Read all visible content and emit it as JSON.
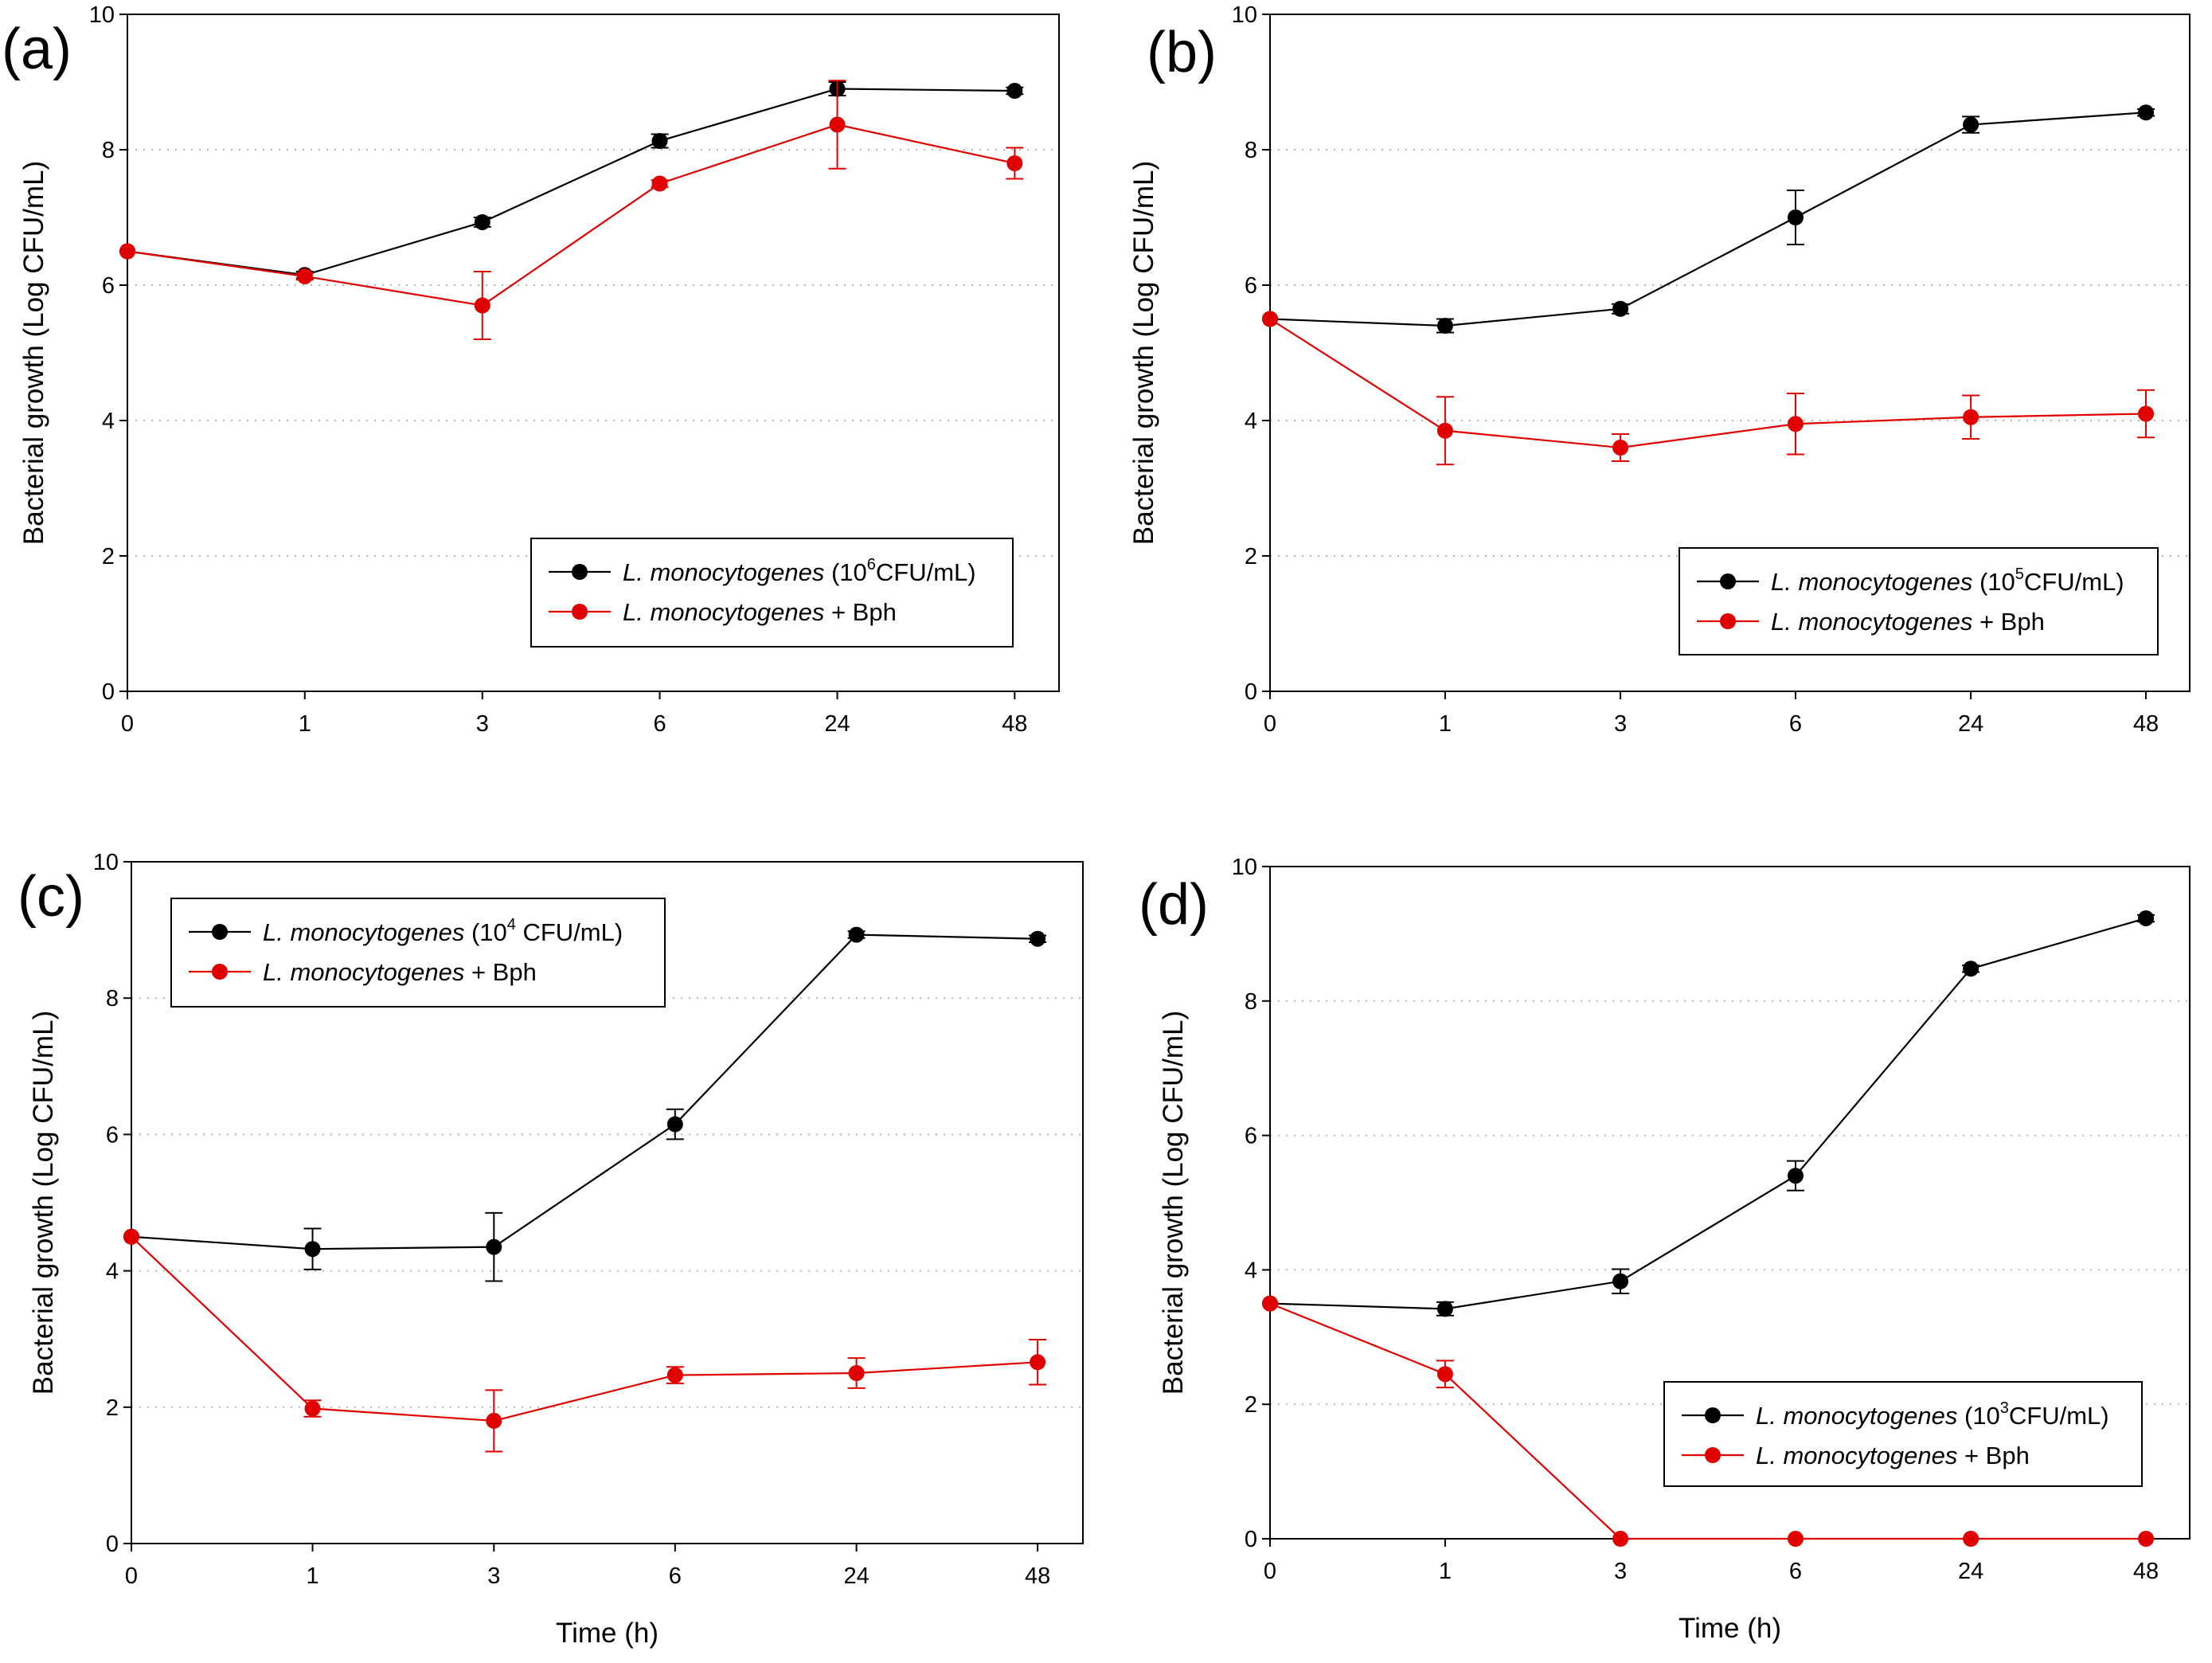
{
  "colors": {
    "series1": "#000000",
    "series2": "#e00000",
    "grid": "#b4b4b4",
    "frame": "#000000"
  },
  "chart_data": [
    {
      "panel_label": "(a)",
      "type": "line",
      "ylabel": "Bacterial growth (Log CFU/mL)",
      "xlabel": "",
      "categories": [
        "0",
        "1",
        "3",
        "6",
        "24",
        "48"
      ],
      "yticks": [
        "0",
        "2",
        "4",
        "6",
        "8",
        "10"
      ],
      "ylim": [
        0,
        10
      ],
      "grid": "horizontal dotted",
      "legend_position": "bottom-right",
      "series": [
        {
          "legend_italic": "L. monocytogenes",
          "legend_pre": " (10",
          "legend_sup": "6",
          "legend_post": "CFU/mL)",
          "values": [
            6.5,
            6.15,
            6.93,
            8.13,
            8.9,
            8.87
          ],
          "errors": [
            0,
            0.05,
            0.07,
            0.1,
            0.1,
            0.05
          ]
        },
        {
          "legend_italic": "L. monocytogenes",
          "legend_pre": " + Bph",
          "legend_sup": "",
          "legend_post": "",
          "values": [
            6.5,
            6.13,
            5.7,
            7.5,
            8.37,
            7.8
          ],
          "errors": [
            0,
            0.05,
            0.5,
            0.05,
            0.65,
            0.23
          ]
        }
      ]
    },
    {
      "panel_label": "(b)",
      "type": "line",
      "ylabel": "Bacterial growth (Log CFU/mL)",
      "xlabel": "",
      "categories": [
        "0",
        "1",
        "3",
        "6",
        "24",
        "48"
      ],
      "yticks": [
        "0",
        "2",
        "4",
        "6",
        "8",
        "10"
      ],
      "ylim": [
        0,
        10
      ],
      "grid": "horizontal dotted",
      "legend_position": "bottom-right",
      "series": [
        {
          "legend_italic": "L. monocytogenes",
          "legend_pre": " (10",
          "legend_sup": "5",
          "legend_post": "CFU/mL)",
          "values": [
            5.5,
            5.4,
            5.65,
            7.0,
            8.37,
            8.55
          ],
          "errors": [
            0,
            0.1,
            0.07,
            0.4,
            0.12,
            0.05
          ]
        },
        {
          "legend_italic": "L. monocytogenes",
          "legend_pre": " + Bph",
          "legend_sup": "",
          "legend_post": "",
          "values": [
            5.5,
            3.85,
            3.6,
            3.95,
            4.05,
            4.1
          ],
          "errors": [
            0,
            0.5,
            0.2,
            0.45,
            0.32,
            0.35
          ]
        }
      ]
    },
    {
      "panel_label": "(c)",
      "type": "line",
      "ylabel": "Bacterial growth (Log CFU/mL)",
      "xlabel": "Time (h)",
      "categories": [
        "0",
        "1",
        "3",
        "6",
        "24",
        "48"
      ],
      "yticks": [
        "0",
        "2",
        "4",
        "6",
        "8",
        "10"
      ],
      "ylim": [
        0,
        10
      ],
      "grid": "horizontal dotted",
      "legend_position": "top-left",
      "series": [
        {
          "legend_italic": "L. monocytogenes",
          "legend_pre": " (10",
          "legend_sup": "4",
          "legend_post": " CFU/mL)",
          "values": [
            4.5,
            4.32,
            4.35,
            6.15,
            8.93,
            8.87
          ],
          "errors": [
            0,
            0.3,
            0.5,
            0.22,
            0.05,
            0.05
          ]
        },
        {
          "legend_italic": "L. monocytogenes",
          "legend_pre": " + Bph",
          "legend_sup": "",
          "legend_post": "",
          "values": [
            4.5,
            1.98,
            1.8,
            2.47,
            2.5,
            2.66
          ],
          "errors": [
            0,
            0.12,
            0.45,
            0.12,
            0.22,
            0.33
          ]
        }
      ]
    },
    {
      "panel_label": "(d)",
      "type": "line",
      "ylabel": "Bacterial growth (Log CFU/mL)",
      "xlabel": "Time (h)",
      "categories": [
        "0",
        "1",
        "3",
        "6",
        "24",
        "48"
      ],
      "yticks": [
        "0",
        "2",
        "4",
        "6",
        "8",
        "10"
      ],
      "ylim": [
        0,
        10
      ],
      "grid": "horizontal dotted",
      "legend_position": "bottom-right",
      "series": [
        {
          "legend_italic": "L. monocytogenes",
          "legend_pre": " (10",
          "legend_sup": "3",
          "legend_post": "CFU/mL)",
          "values": [
            3.5,
            3.42,
            3.83,
            5.4,
            8.48,
            9.23
          ],
          "errors": [
            0,
            0.1,
            0.18,
            0.22,
            0.05,
            0.05
          ]
        },
        {
          "legend_italic": "L. monocytogenes",
          "legend_pre": " + Bph",
          "legend_sup": "",
          "legend_post": "",
          "values": [
            3.5,
            2.45,
            0,
            0,
            0,
            0
          ],
          "errors": [
            0,
            0.2,
            0,
            0,
            0,
            0
          ]
        }
      ]
    }
  ]
}
